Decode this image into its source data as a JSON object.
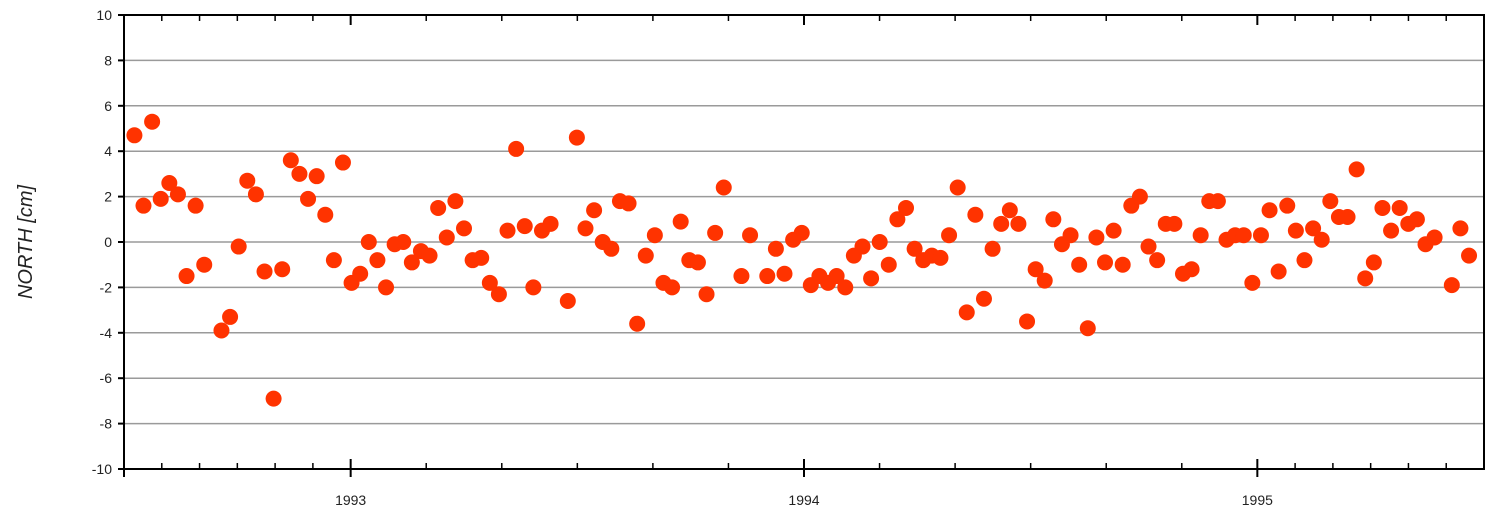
{
  "chart_data": {
    "type": "scatter",
    "title": "",
    "xlabel": "",
    "ylabel": "NORTH [cm]",
    "xlim": [
      1992.5,
      1995.5
    ],
    "ylim": [
      -10,
      10
    ],
    "grid": true,
    "y_ticks": [
      "10",
      "8",
      "6",
      "4",
      "2",
      "0",
      "-2",
      "-4",
      "-6",
      "-8",
      "-10"
    ],
    "x_ticks": [
      {
        "value": 1993,
        "label": "1993"
      },
      {
        "value": 1994,
        "label": "1994"
      },
      {
        "value": 1995,
        "label": "1995"
      }
    ],
    "marker_color": "#ff3300",
    "series": [
      {
        "points": [
          [
            1992.523,
            4.7
          ],
          [
            1992.543,
            1.6
          ],
          [
            1992.562,
            5.3
          ],
          [
            1992.581,
            1.9
          ],
          [
            1992.6,
            2.6
          ],
          [
            1992.619,
            2.1
          ],
          [
            1992.638,
            -1.5
          ],
          [
            1992.658,
            1.6
          ],
          [
            1992.677,
            -1.0
          ],
          [
            1992.715,
            -3.9
          ],
          [
            1992.734,
            -3.3
          ],
          [
            1992.753,
            -0.2
          ],
          [
            1992.772,
            2.7
          ],
          [
            1992.791,
            2.1
          ],
          [
            1992.81,
            -1.3
          ],
          [
            1992.83,
            -6.9
          ],
          [
            1992.849,
            -1.2
          ],
          [
            1992.868,
            3.6
          ],
          [
            1992.887,
            3.0
          ],
          [
            1992.906,
            1.9
          ],
          [
            1992.925,
            2.9
          ],
          [
            1992.944,
            1.2
          ],
          [
            1992.963,
            -0.8
          ],
          [
            1992.983,
            3.5
          ],
          [
            1993.002,
            -1.8
          ],
          [
            1993.021,
            -1.4
          ],
          [
            1993.04,
            0.0
          ],
          [
            1993.059,
            -0.8
          ],
          [
            1993.078,
            -2.0
          ],
          [
            1993.097,
            -0.1
          ],
          [
            1993.116,
            0.0
          ],
          [
            1993.135,
            -0.9
          ],
          [
            1993.155,
            -0.4
          ],
          [
            1993.174,
            -0.6
          ],
          [
            1993.193,
            1.5
          ],
          [
            1993.212,
            0.2
          ],
          [
            1993.231,
            1.8
          ],
          [
            1993.25,
            0.6
          ],
          [
            1993.269,
            -0.8
          ],
          [
            1993.288,
            -0.7
          ],
          [
            1993.307,
            -1.8
          ],
          [
            1993.327,
            -2.3
          ],
          [
            1993.346,
            0.5
          ],
          [
            1993.365,
            4.1
          ],
          [
            1993.384,
            0.7
          ],
          [
            1993.403,
            -2.0
          ],
          [
            1993.422,
            0.5
          ],
          [
            1993.441,
            0.8
          ],
          [
            1993.479,
            -2.6
          ],
          [
            1993.499,
            4.6
          ],
          [
            1993.518,
            0.6
          ],
          [
            1993.537,
            1.4
          ],
          [
            1993.556,
            0.0
          ],
          [
            1993.575,
            -0.3
          ],
          [
            1993.594,
            1.8
          ],
          [
            1993.613,
            1.7
          ],
          [
            1993.632,
            -3.6
          ],
          [
            1993.651,
            -0.6
          ],
          [
            1993.671,
            0.3
          ],
          [
            1993.69,
            -1.8
          ],
          [
            1993.709,
            -2.0
          ],
          [
            1993.728,
            0.9
          ],
          [
            1993.747,
            -0.8
          ],
          [
            1993.766,
            -0.9
          ],
          [
            1993.785,
            -2.3
          ],
          [
            1993.804,
            0.4
          ],
          [
            1993.823,
            2.4
          ],
          [
            1993.862,
            -1.5
          ],
          [
            1993.881,
            0.3
          ],
          [
            1993.919,
            -1.5
          ],
          [
            1993.938,
            -0.3
          ],
          [
            1993.957,
            -1.4
          ],
          [
            1993.976,
            0.1
          ],
          [
            1993.995,
            0.4
          ],
          [
            1994.015,
            -1.9
          ],
          [
            1994.034,
            -1.5
          ],
          [
            1994.053,
            -1.8
          ],
          [
            1994.072,
            -1.5
          ],
          [
            1994.091,
            -2.0
          ],
          [
            1994.11,
            -0.6
          ],
          [
            1994.129,
            -0.2
          ],
          [
            1994.148,
            -1.6
          ],
          [
            1994.167,
            0.0
          ],
          [
            1994.187,
            -1.0
          ],
          [
            1994.206,
            1.0
          ],
          [
            1994.225,
            1.5
          ],
          [
            1994.244,
            -0.3
          ],
          [
            1994.263,
            -0.8
          ],
          [
            1994.282,
            -0.6
          ],
          [
            1994.301,
            -0.7
          ],
          [
            1994.32,
            0.3
          ],
          [
            1994.339,
            2.4
          ],
          [
            1994.359,
            -3.1
          ],
          [
            1994.378,
            1.2
          ],
          [
            1994.397,
            -2.5
          ],
          [
            1994.416,
            -0.3
          ],
          [
            1994.435,
            0.8
          ],
          [
            1994.454,
            1.4
          ],
          [
            1994.473,
            0.8
          ],
          [
            1994.492,
            -3.5
          ],
          [
            1994.511,
            -1.2
          ],
          [
            1994.531,
            -1.7
          ],
          [
            1994.55,
            1.0
          ],
          [
            1994.569,
            -0.1
          ],
          [
            1994.588,
            0.3
          ],
          [
            1994.607,
            -1.0
          ],
          [
            1994.626,
            -3.8
          ],
          [
            1994.645,
            0.2
          ],
          [
            1994.664,
            -0.9
          ],
          [
            1994.683,
            0.5
          ],
          [
            1994.703,
            -1.0
          ],
          [
            1994.722,
            1.6
          ],
          [
            1994.741,
            2.0
          ],
          [
            1994.76,
            -0.2
          ],
          [
            1994.779,
            -0.8
          ],
          [
            1994.798,
            0.8
          ],
          [
            1994.817,
            0.8
          ],
          [
            1994.836,
            -1.4
          ],
          [
            1994.855,
            -1.2
          ],
          [
            1994.875,
            0.3
          ],
          [
            1994.894,
            1.8
          ],
          [
            1994.913,
            1.8
          ],
          [
            1994.932,
            0.1
          ],
          [
            1994.951,
            0.3
          ],
          [
            1994.97,
            0.3
          ],
          [
            1994.989,
            -1.8
          ],
          [
            1995.008,
            0.3
          ],
          [
            1995.027,
            1.4
          ],
          [
            1995.047,
            -1.3
          ],
          [
            1995.066,
            1.6
          ],
          [
            1995.085,
            0.5
          ],
          [
            1995.104,
            -0.8
          ],
          [
            1995.123,
            0.6
          ],
          [
            1995.142,
            0.1
          ],
          [
            1995.161,
            1.8
          ],
          [
            1995.18,
            1.1
          ],
          [
            1995.199,
            1.1
          ],
          [
            1995.219,
            3.2
          ],
          [
            1995.238,
            -1.6
          ],
          [
            1995.257,
            -0.9
          ],
          [
            1995.276,
            1.5
          ],
          [
            1995.295,
            0.5
          ],
          [
            1995.314,
            1.5
          ],
          [
            1995.333,
            0.8
          ],
          [
            1995.352,
            1.0
          ],
          [
            1995.371,
            -0.1
          ],
          [
            1995.391,
            0.2
          ],
          [
            1995.429,
            -1.9
          ],
          [
            1995.448,
            0.6
          ],
          [
            1995.467,
            -0.6
          ]
        ]
      }
    ]
  }
}
